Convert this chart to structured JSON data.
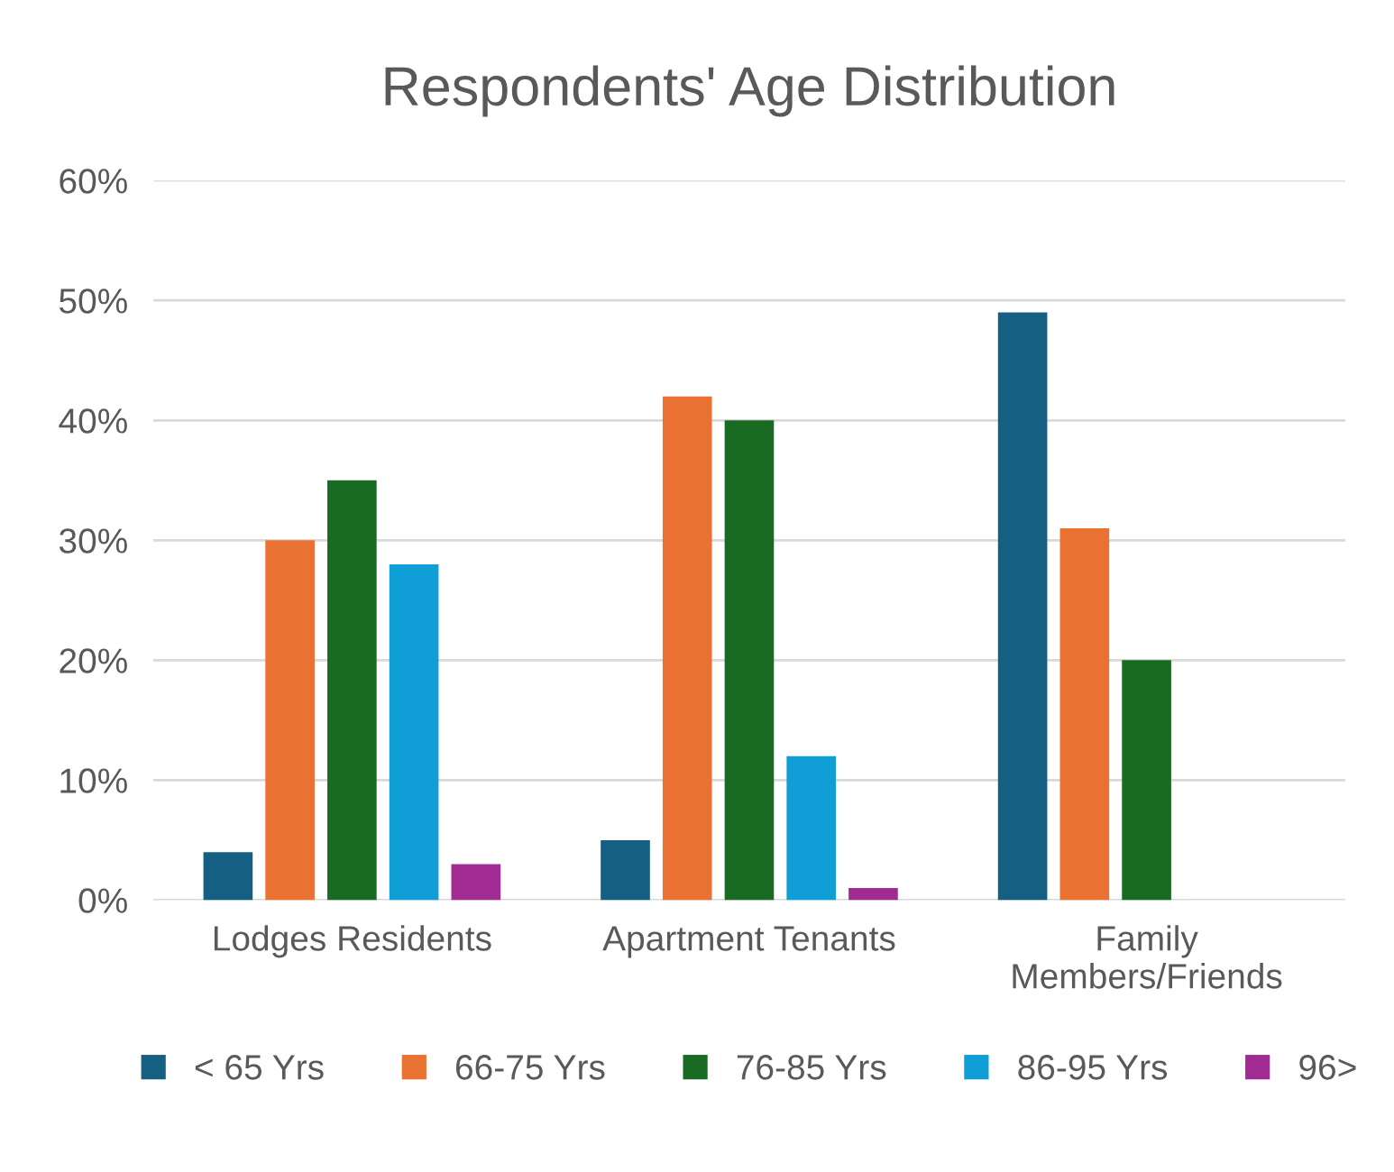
{
  "chart_data": {
    "type": "bar",
    "title": "Respondents' Age Distribution",
    "categories": [
      "Lodges Residents",
      "Apartment Tenants",
      "Family\nMembers/Friends"
    ],
    "series": [
      {
        "name": "< 65 Yrs",
        "color": "#156082",
        "values": [
          4,
          5,
          49
        ]
      },
      {
        "name": "66-75 Yrs",
        "color": "#e97132",
        "values": [
          30,
          42,
          31
        ]
      },
      {
        "name": "76-85 Yrs",
        "color": "#196b24",
        "values": [
          35,
          40,
          20
        ]
      },
      {
        "name": "86-95 Yrs",
        "color": "#0f9ed5",
        "values": [
          28,
          12,
          null
        ]
      },
      {
        "name": "96>",
        "color": "#a02b93",
        "values": [
          3,
          1,
          null
        ]
      }
    ],
    "ylim": [
      0,
      60
    ],
    "yticks": [
      {
        "value": 0,
        "label": "0%"
      },
      {
        "value": 10,
        "label": "10%"
      },
      {
        "value": 20,
        "label": "20%"
      },
      {
        "value": 30,
        "label": "30%"
      },
      {
        "value": 40,
        "label": "40%"
      },
      {
        "value": 50,
        "label": "50%"
      },
      {
        "value": 60,
        "label": "60%"
      }
    ],
    "grid": "y",
    "legend": "bottom"
  }
}
